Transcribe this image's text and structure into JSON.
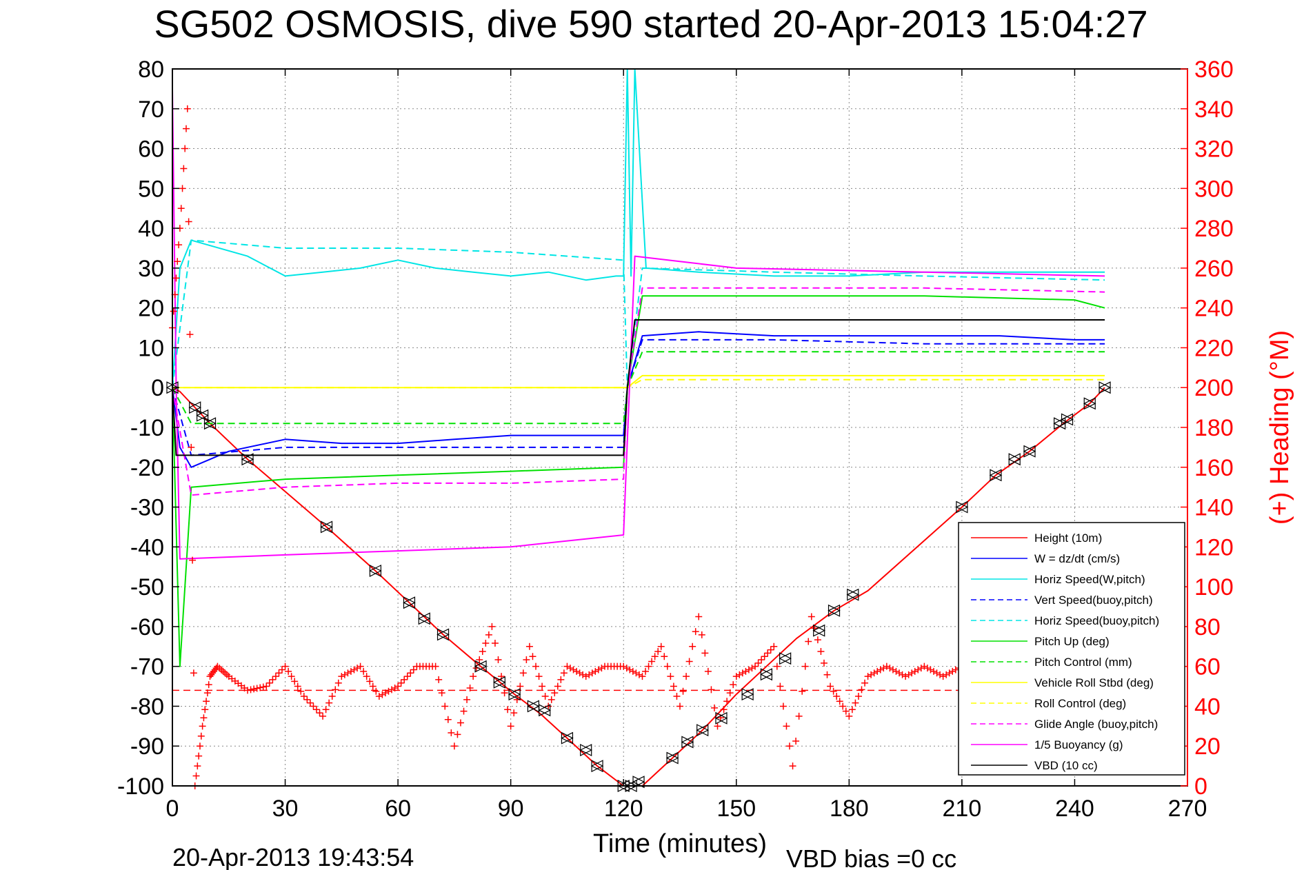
{
  "chart_data": {
    "type": "line",
    "title": "SG502 OSMOSIS, dive 590 started 20-Apr-2013 15:04:27",
    "xlabel": "Time (minutes)",
    "ylabel_right": "(+) Heading (°M)",
    "footer_left": "20-Apr-2013 19:43:54",
    "footer_right": "VBD bias =0 cc",
    "xlim": [
      0,
      270
    ],
    "ylim": [
      -100,
      80
    ],
    "ylim_right": [
      0,
      360
    ],
    "x_ticks": [
      0,
      30,
      60,
      90,
      120,
      150,
      180,
      210,
      240,
      270
    ],
    "y_ticks": [
      80,
      70,
      60,
      50,
      40,
      30,
      20,
      10,
      0,
      -10,
      -20,
      -30,
      -40,
      -50,
      -60,
      -70,
      -80,
      -90,
      -100
    ],
    "y_ticks_right": [
      360,
      340,
      320,
      300,
      280,
      260,
      240,
      220,
      200,
      180,
      160,
      140,
      120,
      100,
      80,
      60,
      40,
      20,
      0
    ],
    "grid": true,
    "legend_position": "lower-right",
    "colors": {
      "left_axis": "#000000",
      "right_axis": "#ff0000"
    },
    "series": [
      {
        "name": "Height (10m)",
        "color": "#ff0000",
        "style": "solid",
        "axis": "left",
        "x": [
          0,
          2,
          10,
          20,
          41,
          54,
          63,
          72,
          82,
          91,
          98,
          105,
          113,
          120,
          125,
          133,
          141,
          150,
          158,
          166,
          176,
          185,
          210,
          219,
          228,
          237,
          244,
          248
        ],
        "y": [
          0,
          -1,
          -9,
          -18,
          -35,
          -46,
          -54,
          -62,
          -70,
          -77,
          -82,
          -88,
          -95,
          -100,
          -100,
          -93,
          -86,
          -77,
          -70,
          -63,
          -56,
          -51,
          -30,
          -22,
          -16,
          -9,
          -4,
          0
        ]
      },
      {
        "name": "W = dz/dt (cm/s)",
        "color": "#0000ff",
        "style": "solid",
        "axis": "left",
        "x": [
          0,
          2,
          5,
          15,
          30,
          45,
          60,
          75,
          90,
          105,
          120,
          121,
          125,
          140,
          160,
          180,
          200,
          220,
          240,
          248
        ],
        "y": [
          0,
          -15,
          -20,
          -16,
          -13,
          -14,
          -14,
          -13,
          -12,
          -12,
          -12,
          0,
          13,
          14,
          13,
          13,
          13,
          13,
          12,
          12
        ]
      },
      {
        "name": "Horiz Speed(W,pitch)",
        "color": "#00e5e5",
        "style": "solid",
        "axis": "left",
        "x": [
          0,
          2,
          5,
          20,
          30,
          40,
          50,
          60,
          70,
          80,
          90,
          100,
          110,
          118,
          120,
          121,
          122,
          123,
          126,
          140,
          160,
          180,
          200,
          220,
          240,
          248
        ],
        "y": [
          0,
          30,
          37,
          33,
          28,
          29,
          30,
          32,
          30,
          29,
          28,
          29,
          27,
          28,
          28,
          85,
          28,
          85,
          30,
          29,
          28,
          28,
          29,
          29,
          29,
          29
        ]
      },
      {
        "name": "Vert Speed(buoy,pitch)",
        "color": "#0000ff",
        "style": "dashed",
        "axis": "left",
        "x": [
          0,
          5,
          30,
          60,
          90,
          120,
          121,
          125,
          160,
          200,
          248
        ],
        "y": [
          0,
          -17,
          -15,
          -15,
          -15,
          -15,
          0,
          12,
          12,
          11,
          11
        ]
      },
      {
        "name": "Horiz Speed(buoy,pitch)",
        "color": "#00e5e5",
        "style": "dashed",
        "axis": "left",
        "x": [
          0,
          5,
          30,
          60,
          90,
          120,
          121,
          125,
          160,
          200,
          248
        ],
        "y": [
          0,
          37,
          35,
          35,
          34,
          32,
          0,
          30,
          29,
          28,
          27
        ]
      },
      {
        "name": "Pitch Up (deg)",
        "color": "#00e000",
        "style": "solid",
        "axis": "left",
        "x": [
          0,
          2,
          5,
          30,
          60,
          90,
          120,
          121,
          125,
          160,
          200,
          240,
          248
        ],
        "y": [
          0,
          -70,
          -25,
          -23,
          -22,
          -21,
          -20,
          0,
          23,
          23,
          23,
          22,
          20
        ]
      },
      {
        "name": "Pitch Control (mm)",
        "color": "#00e000",
        "style": "dashed",
        "axis": "left",
        "x": [
          0,
          5,
          60,
          120,
          121,
          125,
          200,
          248
        ],
        "y": [
          0,
          -9,
          -9,
          -9,
          0,
          9,
          9,
          9
        ]
      },
      {
        "name": "Vehicle Roll Stbd (deg)",
        "color": "#ffff00",
        "style": "solid",
        "axis": "left",
        "x": [
          0,
          5,
          30,
          60,
          90,
          120,
          121,
          125,
          160,
          200,
          248
        ],
        "y": [
          0,
          0,
          0,
          0,
          0,
          0,
          0,
          3,
          3,
          3,
          3
        ]
      },
      {
        "name": "Roll Control (deg)",
        "color": "#ffff00",
        "style": "dashed",
        "axis": "left",
        "x": [
          0,
          5,
          30,
          60,
          90,
          120,
          121,
          125,
          160,
          200,
          248
        ],
        "y": [
          0,
          0,
          0,
          0,
          0,
          0,
          0,
          2,
          2,
          2,
          2
        ]
      },
      {
        "name": "Glide Angle (buoy,pitch)",
        "color": "#ff00ff",
        "style": "dashed",
        "axis": "left",
        "x": [
          0,
          5,
          30,
          60,
          90,
          120,
          121,
          125,
          160,
          200,
          248
        ],
        "y": [
          0,
          -27,
          -25,
          -24,
          -24,
          -23,
          0,
          25,
          25,
          25,
          24
        ]
      },
      {
        "name": "1/5 Buoyancy (g)",
        "color": "#ff00ff",
        "style": "solid",
        "axis": "left",
        "x": [
          0,
          1,
          2,
          30,
          60,
          90,
          110,
          120,
          123,
          150,
          200,
          248
        ],
        "y": [
          75,
          0,
          -43,
          -42,
          -41,
          -40,
          -38,
          -37,
          33,
          30,
          29,
          28
        ]
      },
      {
        "name": "VBD (10 cc)",
        "color": "#000000",
        "style": "solid",
        "axis": "left",
        "x": [
          0,
          1,
          2,
          120,
          121,
          123,
          248
        ],
        "y": [
          0,
          -17,
          -17,
          -17,
          0,
          17,
          17
        ]
      }
    ],
    "heading_series": {
      "color": "#ff0000",
      "marker": "+",
      "axis": "right",
      "mean": 48,
      "x": [
        0,
        2,
        4,
        6,
        8,
        10,
        12,
        15,
        20,
        25,
        30,
        35,
        40,
        45,
        50,
        55,
        60,
        65,
        70,
        75,
        80,
        85,
        90,
        95,
        100,
        105,
        110,
        115,
        120,
        125,
        130,
        135,
        140,
        145,
        150,
        155,
        160,
        165,
        170,
        175,
        180,
        185,
        190,
        195,
        200,
        205,
        210
      ],
      "y": [
        230,
        280,
        340,
        0,
        30,
        55,
        60,
        55,
        48,
        50,
        60,
        45,
        35,
        55,
        60,
        45,
        50,
        60,
        60,
        20,
        55,
        80,
        30,
        70,
        40,
        60,
        55,
        60,
        60,
        55,
        70,
        40,
        85,
        30,
        55,
        60,
        70,
        10,
        85,
        50,
        35,
        55,
        60,
        55,
        60,
        55,
        60
      ]
    },
    "markers": {
      "symbol": "triangle-pair",
      "color": "#000000",
      "x": [
        0,
        6,
        8,
        10,
        20,
        41,
        54,
        63,
        67,
        72,
        82,
        87,
        91,
        96,
        99,
        105,
        110,
        113,
        120,
        122,
        124,
        133,
        137,
        141,
        146,
        153,
        158,
        163,
        172,
        176,
        181,
        210,
        219,
        224,
        228,
        236,
        238,
        244,
        248
      ],
      "y": [
        0,
        -5,
        -7,
        -9,
        -18,
        -35,
        -46,
        -54,
        -58,
        -62,
        -70,
        -74,
        -77,
        -80,
        -81,
        -88,
        -91,
        -95,
        -100,
        -100,
        -99,
        -93,
        -89,
        -86,
        -83,
        -77,
        -72,
        -68,
        -61,
        -56,
        -52,
        -30,
        -22,
        -18,
        -16,
        -9,
        -8,
        -4,
        0
      ]
    }
  }
}
